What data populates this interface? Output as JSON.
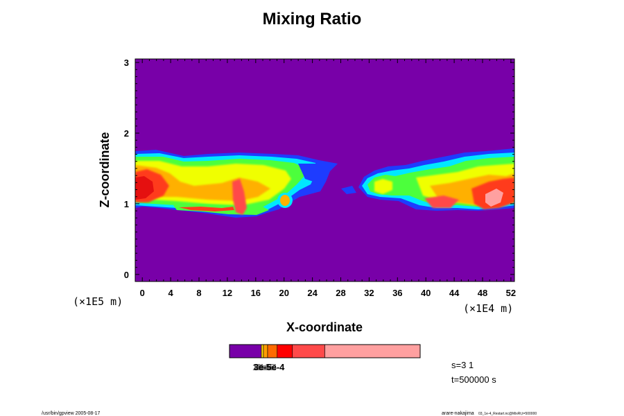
{
  "chart_data": {
    "type": "heatmap",
    "title": "Mixing Ratio",
    "xlabel": "X-coordinate",
    "ylabel": "Z-coordinate",
    "x_scale_label": "(×1E4 m)",
    "y_scale_label": "(×1E5 m)",
    "xlim": [
      -1,
      52.5
    ],
    "ylim": [
      -0.1,
      3.05
    ],
    "x_ticks": [
      0,
      4,
      8,
      12,
      16,
      20,
      24,
      28,
      32,
      36,
      40,
      44,
      48,
      52
    ],
    "y_ticks": [
      0,
      1,
      2,
      3
    ],
    "background_color": "#7800a8",
    "legend": {
      "colors": [
        "#7800a8",
        "#ffd800",
        "#ff9c00",
        "#ff6a00",
        "#ff0000",
        "#ff4a4a",
        "#ffa0a0"
      ],
      "bounds": [
        0,
        0.167,
        0.178,
        0.2,
        0.25,
        0.33,
        0.5,
        1.0
      ],
      "labels": [
        "1e-5",
        "2e-5",
        "3e-5",
        "4e-4"
      ],
      "overlapping_label_text": "3e-5e-4"
    }
  },
  "info": {
    "s_label": "s=3 1",
    "t_label": "t=500000 s"
  },
  "footer": {
    "left": "/usr/bin/gpview 2005-08-17",
    "right_main": "arare-nakajima",
    "right_small": "03_1e-4_Restart.nc@MixRt,t=500000"
  }
}
